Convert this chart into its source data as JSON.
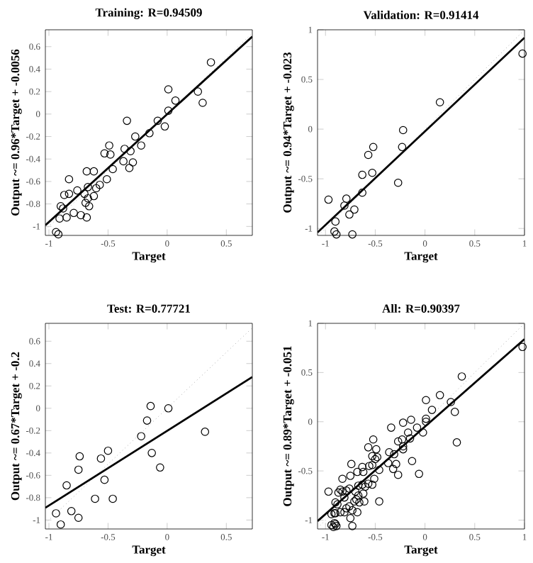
{
  "chart_data": [
    {
      "type": "scatter",
      "title": "Training: R=0.94509",
      "xlabel": "Target",
      "ylabel": "Output ~= 0.96*Target + -0.0056",
      "xlim": [
        -1.03,
        0.72
      ],
      "ylim": [
        -1.08,
        0.75
      ],
      "xticks": [
        -1,
        -0.5,
        0,
        0.5
      ],
      "yticks": [
        -1,
        -0.8,
        -0.6,
        -0.4,
        -0.2,
        0,
        0.2,
        0.4,
        0.6
      ],
      "series": [
        {
          "type": "scatter",
          "marker": "circle",
          "color": "#000000",
          "x": [
            0.37,
            0.01,
            0.07,
            0.01,
            -0.02,
            -0.08,
            0.26,
            0.3,
            -0.34,
            -0.15,
            -0.27,
            -0.22,
            -0.49,
            -0.53,
            -0.48,
            -0.36,
            -0.31,
            -0.29,
            -0.32,
            -0.37,
            -0.46,
            -0.51,
            -0.62,
            -0.68,
            -0.83,
            -0.76,
            -0.67,
            -0.6,
            -0.57,
            -0.62,
            -0.67,
            -0.7,
            -0.87,
            -0.83,
            -0.9,
            -0.88,
            -0.66,
            -0.69,
            -0.79,
            -0.73,
            -0.68,
            -0.85,
            -0.91,
            -0.94,
            -0.92
          ],
          "values": [
            0.46,
            0.22,
            0.12,
            0.03,
            -0.11,
            -0.06,
            0.2,
            0.1,
            -0.06,
            -0.17,
            -0.2,
            -0.28,
            -0.28,
            -0.35,
            -0.36,
            -0.31,
            -0.33,
            -0.43,
            -0.48,
            -0.42,
            -0.49,
            -0.58,
            -0.51,
            -0.51,
            -0.58,
            -0.68,
            -0.65,
            -0.66,
            -0.63,
            -0.73,
            -0.75,
            -0.71,
            -0.72,
            -0.71,
            -0.82,
            -0.84,
            -0.82,
            -0.79,
            -0.88,
            -0.9,
            -0.92,
            -0.92,
            -0.93,
            -1.05,
            -1.07
          ]
        },
        {
          "type": "line",
          "color": "#aaaaaa",
          "line_style": "dotted",
          "x": [
            -1.03,
            0.72
          ],
          "values": [
            -1.03,
            0.72
          ]
        },
        {
          "type": "line",
          "color": "#000000",
          "line_style": "solid",
          "x": [
            -1.03,
            0.72
          ],
          "values": [
            -0.99,
            0.69
          ]
        }
      ]
    },
    {
      "type": "scatter",
      "title": "Validation: R=0.91414",
      "xlabel": "Target",
      "ylabel": "Output ~= 0.94*Target + -0.023",
      "xlim": [
        -1.08,
        1
      ],
      "ylim": [
        -1.07,
        1
      ],
      "xticks": [
        -1,
        -0.5,
        0,
        0.5,
        1
      ],
      "yticks": [
        -1,
        -0.5,
        0,
        0.5,
        1
      ],
      "series": [
        {
          "type": "scatter",
          "marker": "circle",
          "color": "#000000",
          "x": [
            0.98,
            0.15,
            -0.22,
            -0.23,
            -0.52,
            -0.57,
            -0.53,
            -0.63,
            -0.63,
            -0.27,
            -0.97,
            -0.79,
            -0.81,
            -0.76,
            -0.71,
            -0.9,
            -0.91,
            -0.89,
            -0.73
          ],
          "values": [
            0.76,
            0.27,
            -0.01,
            -0.18,
            -0.18,
            -0.26,
            -0.44,
            -0.46,
            -0.64,
            -0.54,
            -0.71,
            -0.7,
            -0.77,
            -0.86,
            -0.81,
            -0.93,
            -1.03,
            -1.06,
            -1.06
          ]
        },
        {
          "type": "line",
          "color": "#aaaaaa",
          "line_style": "dotted",
          "x": [
            -1.07,
            1
          ],
          "values": [
            -1.07,
            1
          ]
        },
        {
          "type": "line",
          "color": "#000000",
          "line_style": "solid",
          "x": [
            -1.08,
            1
          ],
          "values": [
            -1.04,
            0.92
          ]
        }
      ]
    },
    {
      "type": "scatter",
      "title": "Test: R=0.77721",
      "xlabel": "Target",
      "ylabel": "Output ~= 0.67*Target + -0.2",
      "xlim": [
        -1.03,
        0.72
      ],
      "ylim": [
        -1.08,
        0.76
      ],
      "xticks": [
        -1,
        -0.5,
        0,
        0.5
      ],
      "yticks": [
        -1,
        -0.8,
        -0.6,
        -0.4,
        -0.2,
        0,
        0.2,
        0.4,
        0.6
      ],
      "series": [
        {
          "type": "scatter",
          "marker": "circle",
          "color": "#000000",
          "x": [
            0.32,
            0.01,
            -0.14,
            -0.17,
            -0.22,
            -0.13,
            -0.06,
            -0.5,
            -0.56,
            -0.53,
            -0.74,
            -0.75,
            -0.85,
            -0.61,
            -0.46,
            -0.81,
            -0.94,
            -0.9,
            -0.75
          ],
          "values": [
            -0.21,
            0.0,
            0.02,
            -0.11,
            -0.25,
            -0.4,
            -0.53,
            -0.38,
            -0.45,
            -0.64,
            -0.43,
            -0.55,
            -0.69,
            -0.81,
            -0.81,
            -0.92,
            -0.94,
            -1.04,
            -0.98
          ]
        },
        {
          "type": "line",
          "color": "#aaaaaa",
          "line_style": "dotted",
          "x": [
            -1.03,
            0.72
          ],
          "values": [
            -1.03,
            0.72
          ]
        },
        {
          "type": "line",
          "color": "#000000",
          "line_style": "solid",
          "x": [
            -1.03,
            0.72
          ],
          "values": [
            -0.89,
            0.28
          ]
        }
      ]
    },
    {
      "type": "scatter",
      "title": "All: R=0.90397",
      "xlabel": "Target",
      "ylabel": "Output ~= 0.89*Target + -0.051",
      "xlim": [
        -1.08,
        1
      ],
      "ylim": [
        -1.09,
        1
      ],
      "xticks": [
        -1,
        -0.5,
        0,
        0.5,
        1
      ],
      "yticks": [
        -1,
        -0.5,
        0,
        0.5,
        1
      ],
      "series": [
        {
          "type": "scatter",
          "marker": "circle",
          "color": "#000000",
          "x": [
            0.37,
            0.01,
            0.07,
            0.01,
            -0.02,
            -0.08,
            0.26,
            0.3,
            -0.34,
            -0.15,
            -0.27,
            -0.22,
            -0.49,
            -0.53,
            -0.48,
            -0.36,
            -0.31,
            -0.29,
            -0.32,
            -0.37,
            -0.46,
            -0.51,
            -0.62,
            -0.68,
            -0.83,
            -0.76,
            -0.67,
            -0.6,
            -0.57,
            -0.62,
            -0.67,
            -0.7,
            -0.87,
            -0.83,
            -0.9,
            -0.88,
            -0.66,
            -0.69,
            -0.79,
            -0.73,
            -0.68,
            -0.85,
            -0.91,
            -0.94,
            -0.92,
            0.98,
            0.15,
            -0.22,
            -0.23,
            -0.52,
            -0.57,
            -0.53,
            -0.63,
            -0.63,
            -0.27,
            -0.97,
            -0.79,
            -0.81,
            -0.76,
            -0.71,
            -0.9,
            -0.91,
            -0.89,
            -0.73,
            0.32,
            0.01,
            -0.14,
            -0.17,
            -0.22,
            -0.13,
            -0.06,
            -0.5,
            -0.56,
            -0.53,
            -0.74,
            -0.75,
            -0.85,
            -0.61,
            -0.46,
            -0.81,
            -0.94,
            -0.9,
            -0.75
          ],
          "values": [
            0.46,
            0.22,
            0.12,
            0.03,
            -0.11,
            -0.06,
            0.2,
            0.1,
            -0.06,
            -0.17,
            -0.2,
            -0.28,
            -0.28,
            -0.35,
            -0.36,
            -0.31,
            -0.33,
            -0.43,
            -0.48,
            -0.42,
            -0.49,
            -0.58,
            -0.51,
            -0.51,
            -0.58,
            -0.68,
            -0.65,
            -0.66,
            -0.63,
            -0.73,
            -0.75,
            -0.71,
            -0.72,
            -0.71,
            -0.82,
            -0.84,
            -0.82,
            -0.79,
            -0.88,
            -0.9,
            -0.92,
            -0.92,
            -0.93,
            -1.05,
            -1.07,
            0.76,
            0.27,
            -0.01,
            -0.18,
            -0.18,
            -0.26,
            -0.44,
            -0.46,
            -0.64,
            -0.54,
            -0.71,
            -0.7,
            -0.77,
            -0.86,
            -0.81,
            -0.93,
            -1.03,
            -1.06,
            -1.06,
            -0.21,
            0.0,
            0.02,
            -0.11,
            -0.25,
            -0.4,
            -0.53,
            -0.38,
            -0.45,
            -0.64,
            -0.43,
            -0.55,
            -0.69,
            -0.81,
            -0.81,
            -0.92,
            -0.94,
            -1.04,
            -0.98
          ]
        },
        {
          "type": "line",
          "color": "#aaaaaa",
          "line_style": "dotted",
          "x": [
            -1.08,
            1
          ],
          "values": [
            -1.08,
            1
          ]
        },
        {
          "type": "line",
          "color": "#000000",
          "line_style": "solid",
          "x": [
            -1.08,
            1
          ],
          "values": [
            -1.01,
            0.84
          ]
        }
      ]
    }
  ]
}
